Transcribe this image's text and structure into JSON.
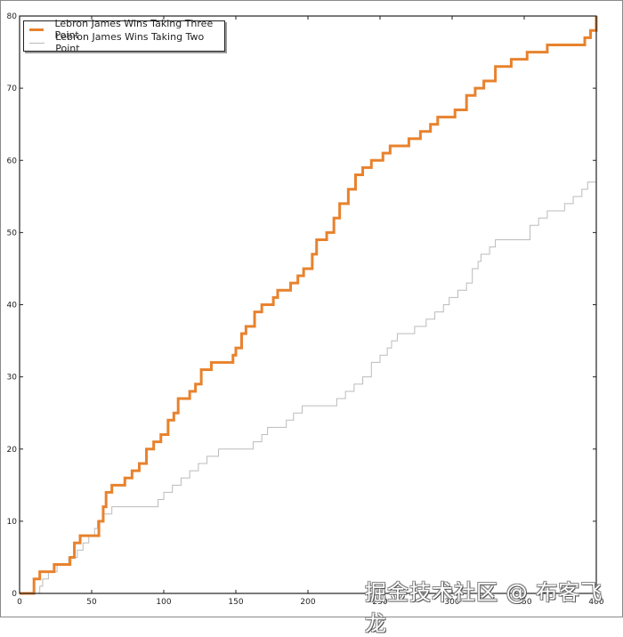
{
  "chart_data": {
    "type": "line",
    "title": "",
    "xlabel": "",
    "ylabel": "",
    "xlim": [
      0,
      400
    ],
    "ylim": [
      0,
      80
    ],
    "grid": false,
    "legend_position": "upper left",
    "x_ticks": [
      0,
      50,
      100,
      150,
      200,
      250,
      300,
      350,
      400
    ],
    "y_ticks": [
      0,
      10,
      20,
      30,
      40,
      50,
      60,
      70,
      80
    ],
    "series": [
      {
        "name": "Lebron James Wins Taking Three Point",
        "color": "#e8822d",
        "linewidth": 3,
        "step": true,
        "points": [
          [
            0,
            0
          ],
          [
            8,
            0
          ],
          [
            10,
            2
          ],
          [
            14,
            3
          ],
          [
            24,
            4
          ],
          [
            35,
            5
          ],
          [
            38,
            7
          ],
          [
            42,
            8
          ],
          [
            52,
            8
          ],
          [
            55,
            10
          ],
          [
            58,
            12
          ],
          [
            60,
            14
          ],
          [
            64,
            15
          ],
          [
            73,
            16
          ],
          [
            78,
            17
          ],
          [
            83,
            18
          ],
          [
            88,
            20
          ],
          [
            93,
            21
          ],
          [
            98,
            22
          ],
          [
            103,
            24
          ],
          [
            107,
            25
          ],
          [
            110,
            27
          ],
          [
            118,
            28
          ],
          [
            122,
            29
          ],
          [
            126,
            31
          ],
          [
            133,
            32
          ],
          [
            145,
            32
          ],
          [
            148,
            33
          ],
          [
            150,
            34
          ],
          [
            154,
            36
          ],
          [
            157,
            37
          ],
          [
            163,
            39
          ],
          [
            168,
            40
          ],
          [
            176,
            41
          ],
          [
            179,
            42
          ],
          [
            188,
            43
          ],
          [
            193,
            44
          ],
          [
            197,
            45
          ],
          [
            203,
            47
          ],
          [
            206,
            49
          ],
          [
            213,
            50
          ],
          [
            218,
            52
          ],
          [
            222,
            54
          ],
          [
            228,
            56
          ],
          [
            233,
            58
          ],
          [
            238,
            59
          ],
          [
            244,
            60
          ],
          [
            252,
            61
          ],
          [
            257,
            62
          ],
          [
            270,
            63
          ],
          [
            278,
            64
          ],
          [
            285,
            65
          ],
          [
            290,
            66
          ],
          [
            302,
            67
          ],
          [
            310,
            69
          ],
          [
            316,
            70
          ],
          [
            322,
            71
          ],
          [
            330,
            73
          ],
          [
            341,
            74
          ],
          [
            352,
            75
          ],
          [
            366,
            76
          ],
          [
            384,
            76
          ],
          [
            392,
            77
          ],
          [
            396,
            78
          ],
          [
            400,
            80
          ]
        ]
      },
      {
        "name": "Lebron James Wins Taking Two Point",
        "color": "#bbbbbb",
        "linewidth": 1,
        "step": true,
        "points": [
          [
            0,
            0
          ],
          [
            12,
            0
          ],
          [
            14,
            1
          ],
          [
            16,
            2
          ],
          [
            20,
            3
          ],
          [
            26,
            4
          ],
          [
            34,
            5
          ],
          [
            40,
            6
          ],
          [
            44,
            7
          ],
          [
            48,
            8
          ],
          [
            52,
            9
          ],
          [
            54,
            10
          ],
          [
            58,
            11
          ],
          [
            64,
            12
          ],
          [
            93,
            12
          ],
          [
            96,
            13
          ],
          [
            100,
            14
          ],
          [
            106,
            15
          ],
          [
            112,
            16
          ],
          [
            118,
            17
          ],
          [
            124,
            18
          ],
          [
            130,
            19
          ],
          [
            138,
            20
          ],
          [
            158,
            20
          ],
          [
            162,
            21
          ],
          [
            168,
            22
          ],
          [
            172,
            23
          ],
          [
            185,
            24
          ],
          [
            190,
            25
          ],
          [
            196,
            26
          ],
          [
            214,
            26
          ],
          [
            220,
            27
          ],
          [
            226,
            28
          ],
          [
            232,
            29
          ],
          [
            238,
            30
          ],
          [
            244,
            32
          ],
          [
            250,
            33
          ],
          [
            255,
            34
          ],
          [
            258,
            35
          ],
          [
            262,
            36
          ],
          [
            274,
            37
          ],
          [
            282,
            38
          ],
          [
            288,
            39
          ],
          [
            294,
            40
          ],
          [
            298,
            41
          ],
          [
            304,
            42
          ],
          [
            310,
            43
          ],
          [
            314,
            45
          ],
          [
            318,
            46
          ],
          [
            320,
            47
          ],
          [
            326,
            48
          ],
          [
            330,
            49
          ],
          [
            350,
            49
          ],
          [
            354,
            51
          ],
          [
            360,
            52
          ],
          [
            366,
            53
          ],
          [
            378,
            54
          ],
          [
            384,
            55
          ],
          [
            390,
            56
          ],
          [
            394,
            57
          ],
          [
            400,
            58
          ]
        ]
      }
    ]
  },
  "legend": {
    "items": [
      {
        "label": "Lebron James Wins Taking Three Point"
      },
      {
        "label": "Lebron James Wins Taking Two Point"
      }
    ]
  },
  "watermark": "掘金技术社区 @ 布客飞龙"
}
